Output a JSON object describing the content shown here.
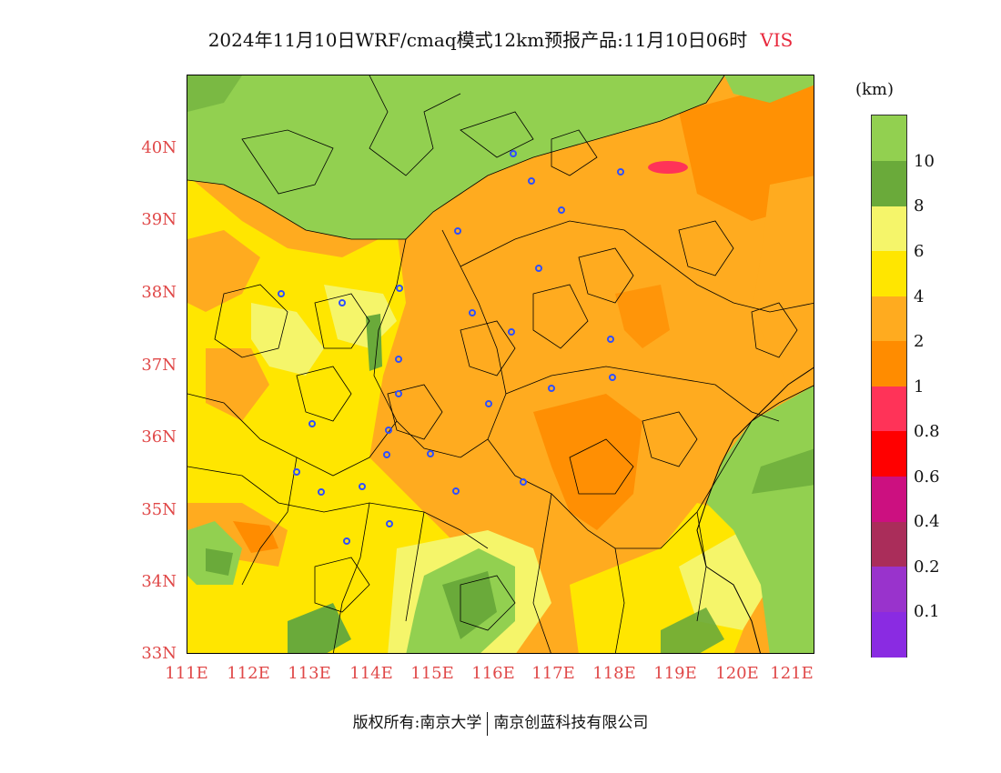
{
  "title": {
    "main": "2024年11月10日WRF/cmaq模式12km预报产品:11月10日06时",
    "variable": "VIS"
  },
  "map": {
    "lat_labels": [
      "40N",
      "39N",
      "38N",
      "37N",
      "36N",
      "35N",
      "34N",
      "33N"
    ],
    "lon_labels": [
      "111E",
      "112E",
      "113E",
      "114E",
      "115E",
      "116E",
      "117E",
      "118E",
      "119E",
      "120E",
      "121E"
    ],
    "colors": {
      "gt10": "#92d050",
      "8_10": "#6aaa3a",
      "6_8": "#f5f56a",
      "4_6": "#ffe600",
      "2_4": "#ffab1f",
      "1_2": "#ff8c00",
      "0_8_1": "#ff3358",
      "city_marker": "#2f4fff",
      "boundary": "#000000"
    }
  },
  "legend": {
    "unit": "(km)",
    "labels": [
      "10",
      "8",
      "6",
      "4",
      "2",
      "1",
      "0.8",
      "0.6",
      "0.4",
      "0.2",
      "0.1"
    ],
    "colors": [
      "#92d050",
      "#6aaa3a",
      "#f5f56a",
      "#ffe600",
      "#ffab1f",
      "#ff8c00",
      "#ff3358",
      "#ff0000",
      "#cc1080",
      "#aa2d5a",
      "#9933cc",
      "#8a2be2"
    ]
  },
  "footer": {
    "left": "版权所有:南京大学",
    "right": "南京创蓝科技有限公司"
  }
}
